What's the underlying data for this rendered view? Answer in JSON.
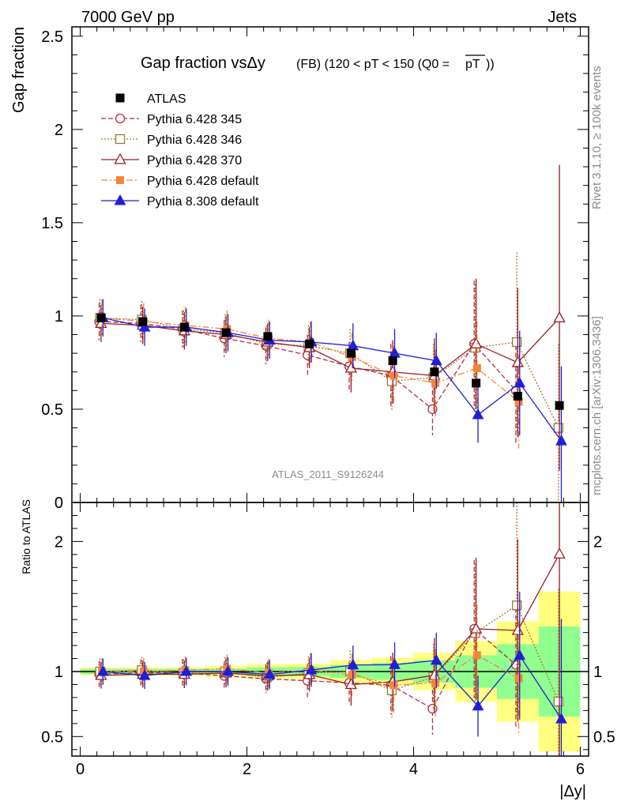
{
  "header": {
    "left": "7000 GeV pp",
    "right": "Jets"
  },
  "side": {
    "rivet": "Rivet 3.1.10, ≥ 100k events",
    "mcplots": "mcplots.cern.ch [arXiv:1306.3436]"
  },
  "watermark": "ATLAS_2011_S9126244",
  "chart_data": {
    "type": "scatter",
    "title_main": "Gap fraction vsΔy",
    "title_sub": "(FB) (120 < pT < 150 (Q0 =",
    "title_pt": "pT",
    "title_end": "))",
    "xlabel": "|Δy|",
    "ylabel": "Gap fraction",
    "ratio_ylabel": "Ratio to ATLAS",
    "xlim": [
      -0.1,
      6.1
    ],
    "ylim": [
      0,
      2.55
    ],
    "ratio_ylim": [
      0.35,
      2.3
    ],
    "xticks": [
      "0",
      "2",
      "4",
      "6"
    ],
    "yticks": [
      "0",
      "0.5",
      "1",
      "1.5",
      "2",
      "2.5"
    ],
    "ratio_yticks": [
      "0.5",
      "1",
      "2"
    ],
    "x": [
      0.25,
      0.75,
      1.25,
      1.75,
      2.25,
      2.75,
      3.25,
      3.75,
      4.25,
      4.75,
      5.25,
      5.75
    ],
    "data": {
      "name": "ATLAS",
      "values": [
        0.99,
        0.97,
        0.94,
        0.91,
        0.89,
        0.85,
        0.8,
        0.76,
        0.7,
        0.64,
        0.57,
        0.52
      ],
      "band_inner": [
        0.02,
        0.02,
        0.02,
        0.02,
        0.03,
        0.03,
        0.04,
        0.05,
        0.06,
        0.08,
        0.12,
        0.18
      ],
      "band_outer": [
        0.03,
        0.03,
        0.03,
        0.04,
        0.05,
        0.05,
        0.07,
        0.08,
        0.1,
        0.15,
        0.22,
        0.32
      ]
    },
    "series": [
      {
        "name": "Pythia 6.428 345",
        "color": "#b22d4a",
        "marker": "circle-open",
        "dash": "6,3",
        "values": [
          0.97,
          0.96,
          0.93,
          0.88,
          0.84,
          0.79,
          0.73,
          0.68,
          0.5,
          0.85,
          0.6,
          null
        ],
        "errors": [
          0.1,
          0.1,
          0.1,
          0.1,
          0.1,
          0.11,
          0.13,
          0.17,
          0.14,
          0.34,
          0.28,
          null
        ]
      },
      {
        "name": "Pythia 6.428 346",
        "color": "#a0782d",
        "marker": "square-open",
        "dash": "2,2",
        "values": [
          0.99,
          0.98,
          0.93,
          0.91,
          0.85,
          0.84,
          0.8,
          0.65,
          0.67,
          0.83,
          0.86,
          0.4
        ],
        "errors": [
          0.1,
          0.1,
          0.1,
          0.1,
          0.1,
          0.11,
          0.13,
          0.16,
          0.18,
          0.34,
          0.48,
          0.45
        ]
      },
      {
        "name": "Pythia 6.428 370",
        "color": "#9a1b24",
        "marker": "triangle-open",
        "dash": "",
        "values": [
          0.96,
          0.95,
          0.92,
          0.9,
          0.86,
          0.83,
          0.72,
          0.7,
          0.68,
          0.85,
          0.75,
          0.99
        ],
        "errors": [
          0.1,
          0.1,
          0.1,
          0.1,
          0.1,
          0.11,
          0.13,
          0.17,
          0.2,
          0.35,
          0.4,
          0.82
        ]
      },
      {
        "name": "Pythia 6.428 default",
        "color": "#f5853a",
        "marker": "square-filled",
        "dash": "8,3,2,3",
        "values": [
          0.99,
          0.97,
          0.95,
          0.93,
          0.88,
          0.86,
          0.78,
          0.68,
          0.64,
          0.72,
          0.54,
          null
        ],
        "errors": [
          0.1,
          0.1,
          0.1,
          0.1,
          0.1,
          0.11,
          0.13,
          0.16,
          0.18,
          0.25,
          0.25,
          null
        ]
      },
      {
        "name": "Pythia 8.308 default",
        "color": "#1f1fd6",
        "marker": "triangle-filled",
        "dash": "",
        "values": [
          0.99,
          0.94,
          0.94,
          0.91,
          0.87,
          0.86,
          0.84,
          0.8,
          0.76,
          0.47,
          0.64,
          0.33
        ],
        "errors": [
          0.1,
          0.1,
          0.1,
          0.1,
          0.1,
          0.11,
          0.12,
          0.13,
          0.15,
          0.15,
          0.28,
          0.4
        ]
      }
    ]
  }
}
